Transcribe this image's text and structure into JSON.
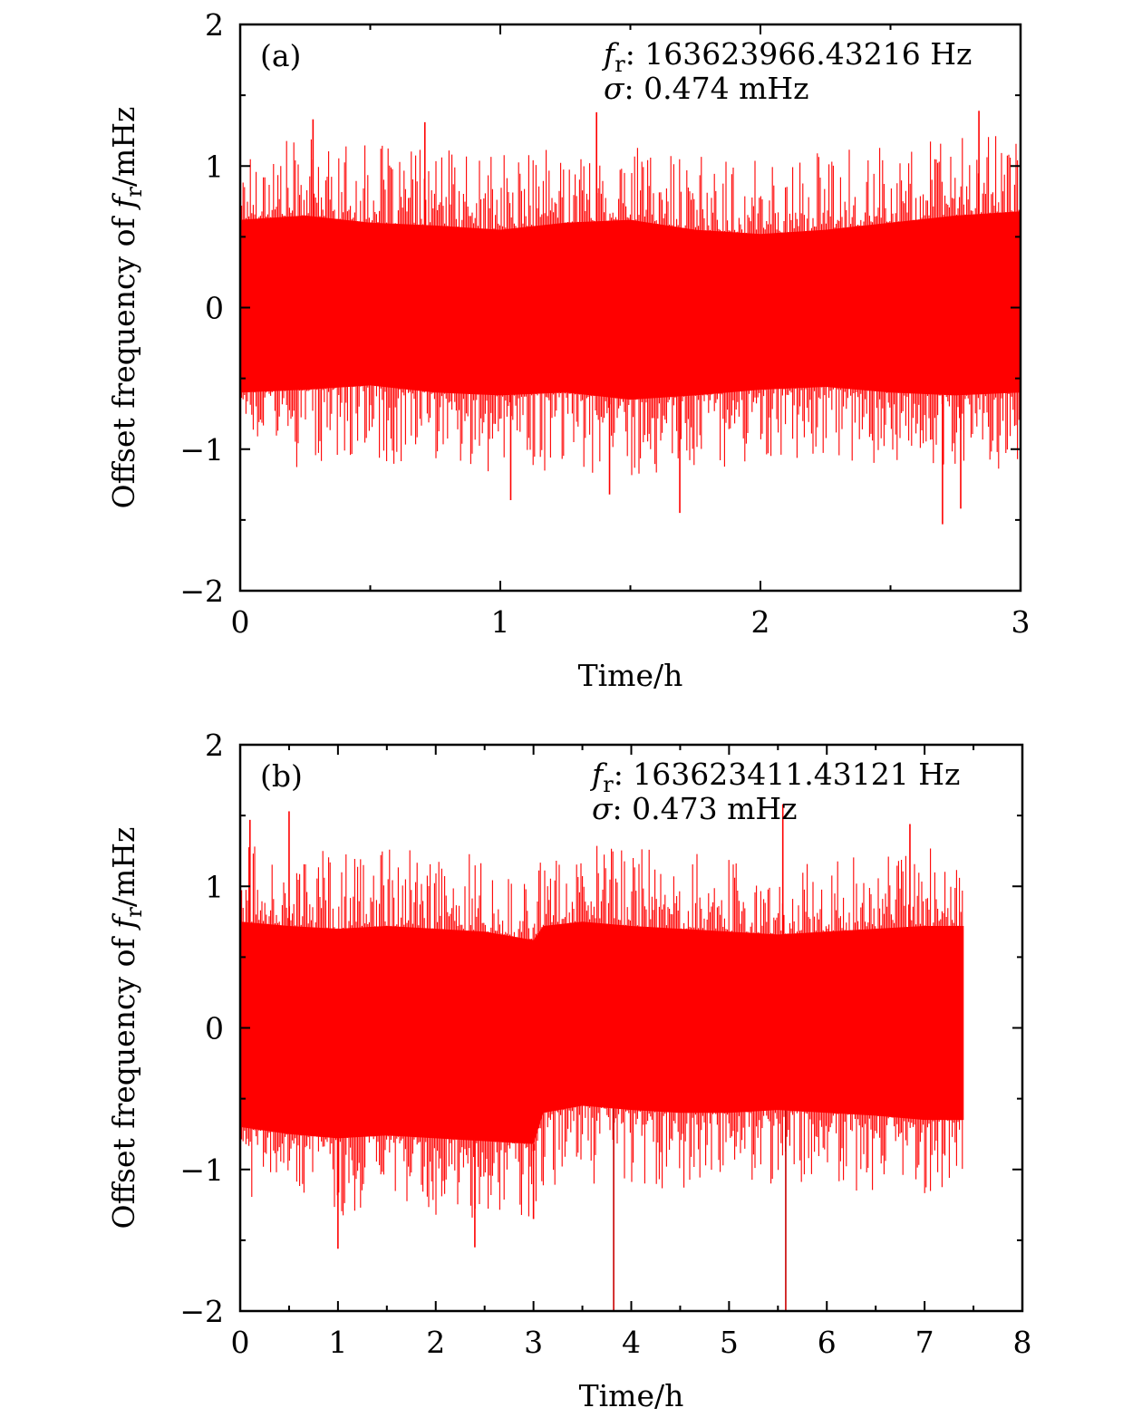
{
  "chart_data": [
    {
      "type": "line",
      "panel_label": "(a)",
      "xlabel": "Time/h",
      "ylabel_prefix": "Offset frequency of ",
      "ylabel_symbol": "f",
      "ylabel_sub": "r",
      "ylabel_suffix": "/mHz",
      "xlim": [
        0,
        3
      ],
      "ylim": [
        -2,
        2
      ],
      "xticks": [
        "0",
        "1",
        "2",
        "3"
      ],
      "yticks": [
        "−2",
        "−1",
        "0",
        "1",
        "2"
      ],
      "grid": false,
      "color": "#ff0000",
      "annotations": {
        "fr_symbol": "f",
        "fr_sub": "r",
        "fr_text": ": 163623966.43216 Hz",
        "sigma_symbol": "σ",
        "sigma_text": ": 0.474 mHz"
      },
      "series": [
        {
          "x_end": 3.0,
          "sigma": 0.474,
          "envelope": {
            "x": [
              0,
              0.25,
              0.5,
              0.75,
              1.0,
              1.25,
              1.5,
              1.75,
              2.0,
              2.25,
              2.5,
              2.75,
              3.0
            ],
            "upper": [
              0.62,
              0.65,
              0.6,
              0.58,
              0.55,
              0.6,
              0.62,
              0.55,
              0.52,
              0.55,
              0.6,
              0.65,
              0.68
            ],
            "lower": [
              -0.6,
              -0.58,
              -0.55,
              -0.6,
              -0.62,
              -0.6,
              -0.65,
              -0.62,
              -0.58,
              -0.56,
              -0.6,
              -0.62,
              -0.6
            ]
          },
          "spikes": [
            {
              "x": 0.28,
              "y": 1.33
            },
            {
              "x": 0.71,
              "y": 1.31
            },
            {
              "x": 1.37,
              "y": 1.38
            },
            {
              "x": 2.84,
              "y": 1.39
            },
            {
              "x": 1.04,
              "y": -1.36
            },
            {
              "x": 1.42,
              "y": -1.32
            },
            {
              "x": 1.69,
              "y": -1.45
            },
            {
              "x": 2.7,
              "y": -1.53
            },
            {
              "x": 2.77,
              "y": -1.42
            }
          ]
        }
      ]
    },
    {
      "type": "line",
      "panel_label": "(b)",
      "xlabel": "Time/h",
      "ylabel_prefix": "Offset frequency of ",
      "ylabel_symbol": "f",
      "ylabel_sub": "r",
      "ylabel_suffix": "/mHz",
      "xlim": [
        0,
        8
      ],
      "ylim": [
        -2,
        2
      ],
      "xticks": [
        "0",
        "1",
        "2",
        "3",
        "4",
        "5",
        "6",
        "7",
        "8"
      ],
      "yticks": [
        "−2",
        "−1",
        "0",
        "1",
        "2"
      ],
      "grid": false,
      "color": "#ff0000",
      "annotations": {
        "fr_symbol": "f",
        "fr_sub": "r",
        "fr_text": ": 163623411.43121 Hz",
        "sigma_symbol": "σ",
        "sigma_text": ": 0.473 mHz"
      },
      "series": [
        {
          "x_end": 7.4,
          "sigma": 0.473,
          "envelope": {
            "x": [
              0,
              0.5,
              1.0,
              1.5,
              2.0,
              2.5,
              3.0,
              3.1,
              3.5,
              4.0,
              4.5,
              5.0,
              5.5,
              6.0,
              6.5,
              7.0,
              7.4
            ],
            "upper": [
              0.75,
              0.72,
              0.7,
              0.72,
              0.7,
              0.68,
              0.62,
              0.72,
              0.75,
              0.72,
              0.7,
              0.68,
              0.66,
              0.68,
              0.7,
              0.72,
              0.72
            ],
            "lower": [
              -0.7,
              -0.75,
              -0.78,
              -0.76,
              -0.78,
              -0.8,
              -0.82,
              -0.6,
              -0.55,
              -0.58,
              -0.6,
              -0.6,
              -0.58,
              -0.6,
              -0.62,
              -0.65,
              -0.65
            ]
          },
          "spikes": [
            {
              "x": 0.1,
              "y": 1.47
            },
            {
              "x": 0.5,
              "y": 1.53
            },
            {
              "x": 5.55,
              "y": 1.58
            },
            {
              "x": 6.85,
              "y": 1.44
            },
            {
              "x": 3.82,
              "y": -2.0
            },
            {
              "x": 5.58,
              "y": -2.0
            },
            {
              "x": 1.0,
              "y": -1.56
            },
            {
              "x": 2.4,
              "y": -1.55
            },
            {
              "x": 3.0,
              "y": -1.35
            }
          ]
        }
      ]
    }
  ]
}
